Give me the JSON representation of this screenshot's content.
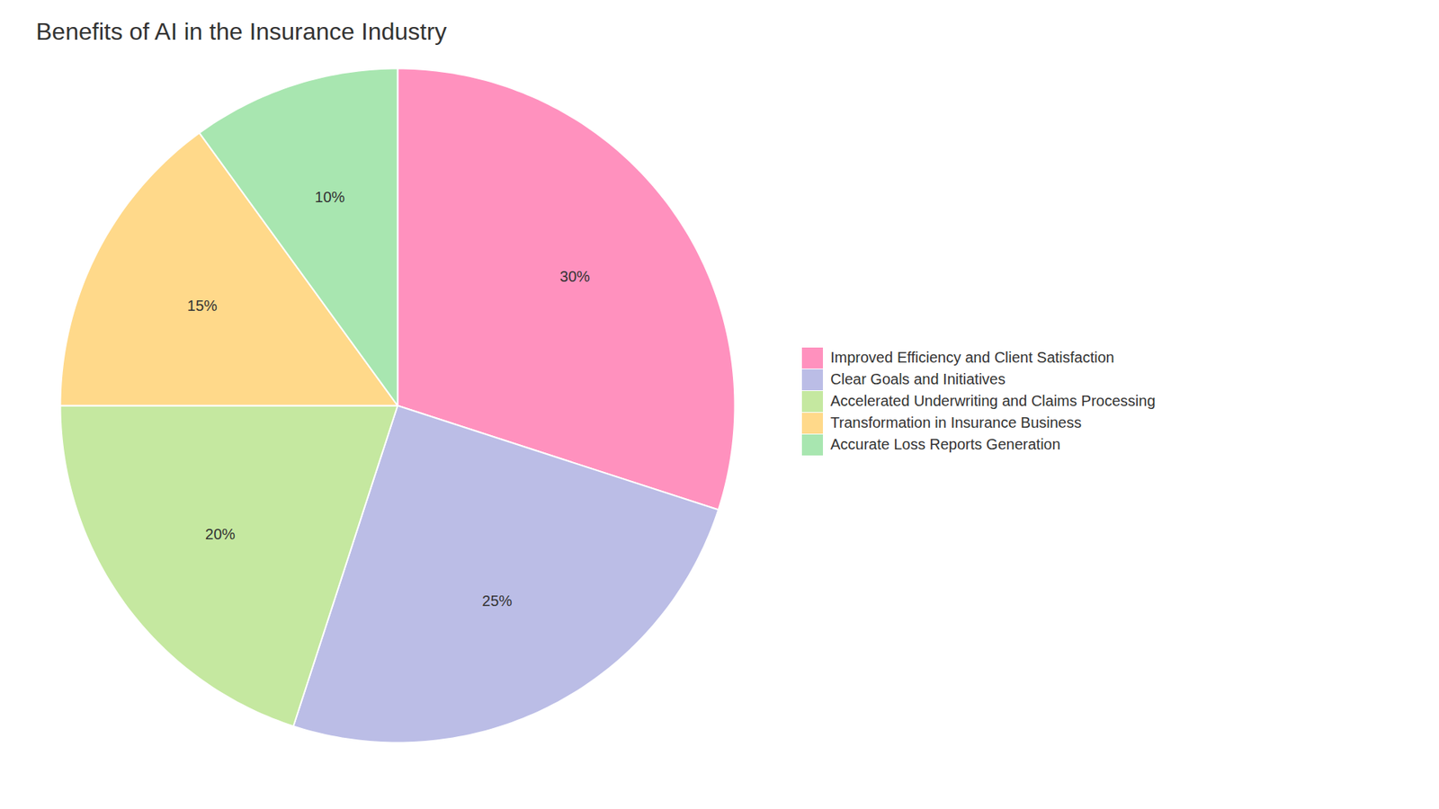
{
  "chart_data": {
    "type": "pie",
    "title": "Benefits of AI in the Insurance Industry",
    "categories": [
      "Improved Efficiency and Client Satisfaction",
      "Clear Goals and Initiatives",
      "Accelerated Underwriting and Claims Processing",
      "Transformation in Insurance Business",
      "Accurate Loss Reports Generation"
    ],
    "values": [
      30,
      25,
      20,
      15,
      10
    ],
    "value_labels": [
      "30%",
      "25%",
      "20%",
      "15%",
      "10%"
    ],
    "colors": [
      "#FF91BE",
      "#BBBDE6",
      "#C5E8A0",
      "#FFD98A",
      "#A8E6B0"
    ],
    "data_labels": true,
    "legend": "right"
  }
}
